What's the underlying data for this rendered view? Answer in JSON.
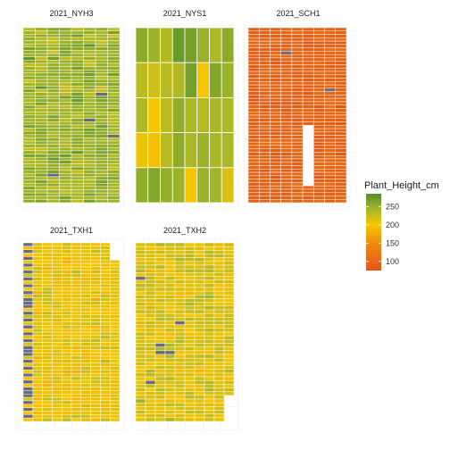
{
  "chart_data": {
    "type": "heatmap",
    "fill_variable": "Plant_Height_cm",
    "color_scale": {
      "stops": [
        {
          "value": 75,
          "color": "#e0571a"
        },
        {
          "value": 150,
          "color": "#f08a10"
        },
        {
          "value": 200,
          "color": "#f7c600"
        },
        {
          "value": 240,
          "color": "#a8b828"
        },
        {
          "value": 285,
          "color": "#4f8f2c"
        }
      ],
      "na_color": "#6a6a7a"
    },
    "legend": {
      "title": "Plant_Height_cm",
      "ticks": [
        250,
        200,
        150,
        100
      ],
      "position": "right"
    },
    "panels": [
      {
        "title": "2021_NYH3",
        "rows": 54,
        "cols": 8,
        "mean": 245,
        "sd": 16,
        "missing_cells": 4
      },
      {
        "title": "2021_NYS1",
        "rows": 5,
        "cols": 8,
        "mean": 240,
        "sd": 18,
        "missing_cells": 0
      },
      {
        "title": "2021_SCH1",
        "rows": 52,
        "cols": 9,
        "mean": 95,
        "sd": 12,
        "missing_cells": 3
      },
      {
        "title": "2021_TXH1",
        "rows": 52,
        "cols": 10,
        "mean": 205,
        "sd": 14,
        "missing_cells": 40
      },
      {
        "title": "2021_TXH2",
        "rows": 48,
        "cols": 10,
        "mean": 215,
        "sd": 16,
        "missing_cells": 6
      }
    ]
  }
}
